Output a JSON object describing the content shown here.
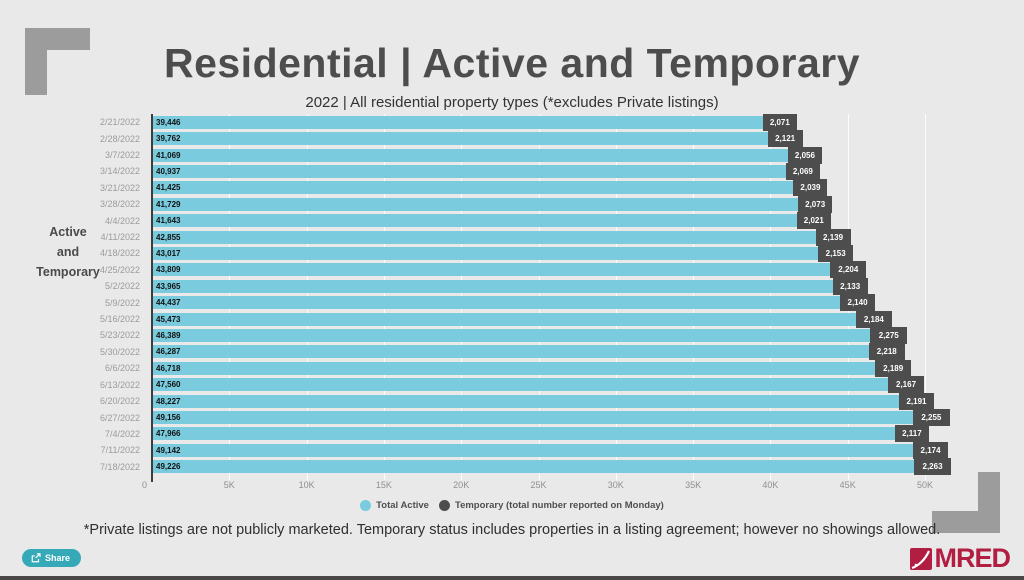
{
  "page": {
    "title": "Residential | Active and Temporary",
    "subtitle": "2022 | All residential property types (*excludes Private listings)",
    "footnote": "*Private listings are not publicly marketed. Temporary status includes properties in a listing agreement; however no showings allowed.",
    "share_label": "Share",
    "logo_text": "MRED"
  },
  "axis_group_label": {
    "line1": "Active",
    "line2": "and",
    "line3": "Temporary"
  },
  "colors": {
    "background": "#e9e9e9",
    "active_bar": "#79cbdd",
    "temporary_bar": "#4d4d4d",
    "title_text": "#4d4d4d",
    "corner_decoration": "#9c9c9c",
    "share_button": "#35a9b7",
    "logo": "#b11e41"
  },
  "chart_data": {
    "type": "bar",
    "orientation": "horizontal",
    "stacked": true,
    "title": "Residential | Active and Temporary",
    "subtitle": "2022 | All residential property types (*excludes Private listings)",
    "ylabel": "Active and Temporary",
    "xlim": [
      0,
      50000
    ],
    "grid": true,
    "legend_position": "bottom",
    "x_ticks": [
      "0",
      "5K",
      "10K",
      "15K",
      "20K",
      "25K",
      "30K",
      "35K",
      "40K",
      "45K",
      "50K"
    ],
    "x_tick_values": [
      0,
      5000,
      10000,
      15000,
      20000,
      25000,
      30000,
      35000,
      40000,
      45000,
      50000
    ],
    "categories": [
      "2/21/2022",
      "2/28/2022",
      "3/7/2022",
      "3/14/2022",
      "3/21/2022",
      "3/28/2022",
      "4/4/2022",
      "4/11/2022",
      "4/18/2022",
      "4/25/2022",
      "5/2/2022",
      "5/9/2022",
      "5/16/2022",
      "5/23/2022",
      "5/30/2022",
      "6/6/2022",
      "6/13/2022",
      "6/20/2022",
      "6/27/2022",
      "7/4/2022",
      "7/11/2022",
      "7/18/2022"
    ],
    "series": [
      {
        "name": "Total Active",
        "color": "#79cbdd",
        "values": [
          39446,
          39762,
          41069,
          40937,
          41425,
          41729,
          41643,
          42855,
          43017,
          43809,
          43965,
          44437,
          45473,
          46389,
          46287,
          46718,
          47560,
          48227,
          49156,
          47966,
          49142,
          49226
        ]
      },
      {
        "name": "Temporary (total number reported on Monday)",
        "color": "#4d4d4d",
        "values": [
          2071,
          2121,
          2056,
          2069,
          2039,
          2073,
          2021,
          2139,
          2153,
          2204,
          2133,
          2140,
          2184,
          2275,
          2218,
          2189,
          2167,
          2191,
          2255,
          2117,
          2174,
          2263
        ]
      }
    ]
  }
}
